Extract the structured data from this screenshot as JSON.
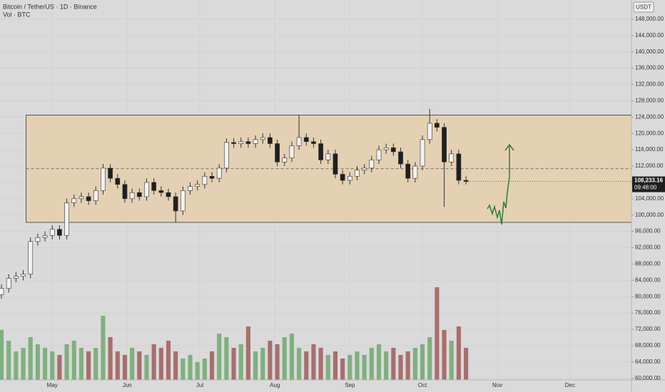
{
  "chart_data": {
    "type": "candlestick",
    "title": "Bitcoin / TetherUS · 1D · Binance",
    "subtitle": "Vol · BTC",
    "currency": "USDT",
    "price_label": "108,233.16",
    "countdown": "09:48:00",
    "open": [
      80500,
      82000,
      84500,
      85000,
      85500,
      93500,
      94500,
      95000,
      96500,
      95000,
      103000,
      104000,
      104500,
      103500,
      106000,
      111500,
      109000,
      107500,
      104000,
      105500,
      104500,
      108000,
      106000,
      105500,
      104500,
      101000,
      106000,
      107000,
      107500,
      109500,
      109000,
      111500,
      117800,
      117500,
      118000,
      117500,
      118500,
      119000,
      117500,
      113000,
      114000,
      117000,
      119000,
      118000,
      117500,
      113500,
      115000,
      110000,
      108500,
      109500,
      111000,
      111500,
      113500,
      116000,
      116500,
      115500,
      112500,
      109000,
      112000,
      118500,
      122500,
      121500,
      113000,
      115000,
      108500
    ],
    "high": [
      83000,
      85500,
      86000,
      86500,
      94500,
      95500,
      96000,
      97500,
      97500,
      104000,
      105000,
      105500,
      105500,
      107000,
      112500,
      112500,
      110000,
      108500,
      106500,
      106500,
      109000,
      109000,
      107000,
      106500,
      105500,
      107000,
      108000,
      108500,
      110500,
      110500,
      112500,
      118800,
      118800,
      119000,
      119000,
      119500,
      120000,
      120000,
      118500,
      115000,
      118000,
      124500,
      120000,
      119000,
      118500,
      116000,
      116000,
      111000,
      110500,
      112000,
      112500,
      114500,
      117000,
      117500,
      117500,
      116500,
      113500,
      113000,
      119500,
      126000,
      123500,
      122500,
      116000,
      116000,
      109500
    ],
    "low": [
      79500,
      81000,
      83500,
      84000,
      84500,
      92500,
      93500,
      94000,
      94000,
      94000,
      102000,
      103000,
      102500,
      102500,
      105000,
      108000,
      106500,
      103000,
      103000,
      103500,
      103500,
      105000,
      104500,
      103500,
      98200,
      100000,
      105000,
      106000,
      106500,
      108000,
      108000,
      110500,
      116500,
      116500,
      116500,
      116500,
      117500,
      116500,
      112000,
      112000,
      113000,
      116000,
      117000,
      116500,
      112500,
      112500,
      109000,
      107500,
      107500,
      108500,
      110000,
      110500,
      112500,
      115000,
      114500,
      111500,
      108000,
      108000,
      111000,
      117500,
      120500,
      102000,
      112000,
      107500,
      107500
    ],
    "close": [
      82000,
      84500,
      85000,
      85500,
      93500,
      94500,
      95000,
      96500,
      95000,
      103000,
      104000,
      104500,
      103500,
      106000,
      111500,
      109000,
      107500,
      104000,
      105500,
      104500,
      108000,
      106000,
      105500,
      104500,
      101000,
      106000,
      107000,
      107500,
      109500,
      109000,
      111500,
      117800,
      117500,
      118000,
      117500,
      118500,
      119000,
      117500,
      113000,
      114000,
      117000,
      119000,
      118000,
      117500,
      113500,
      115000,
      110000,
      108500,
      109500,
      111000,
      111500,
      113500,
      116000,
      116500,
      115500,
      112500,
      109000,
      112000,
      118500,
      122500,
      121500,
      113000,
      115000,
      108500,
      108233.16
    ],
    "volume": [
      70,
      55,
      40,
      45,
      60,
      50,
      45,
      40,
      35,
      50,
      55,
      45,
      40,
      45,
      90,
      60,
      40,
      35,
      45,
      40,
      35,
      50,
      45,
      55,
      40,
      30,
      35,
      25,
      30,
      40,
      65,
      60,
      45,
      50,
      75,
      40,
      45,
      55,
      50,
      60,
      65,
      45,
      40,
      50,
      45,
      35,
      40,
      30,
      35,
      40,
      35,
      45,
      50,
      40,
      45,
      35,
      40,
      45,
      50,
      60,
      130,
      70,
      55,
      75,
      45
    ],
    "vlim": [
      0,
      150
    ],
    "zone": {
      "top": 124500,
      "bottom": 98200,
      "mid": 111350
    },
    "xlim": [
      -0.2,
      86.8
    ],
    "xticks": [
      {
        "value": 7,
        "label": "May"
      },
      {
        "value": 17.33,
        "label": "Jun"
      },
      {
        "value": 27.33,
        "label": "Jul"
      },
      {
        "value": 37.67,
        "label": "Aug"
      },
      {
        "value": 48,
        "label": "Sep"
      },
      {
        "value": 58,
        "label": "Oct"
      },
      {
        "value": 68.33,
        "label": "Nov"
      },
      {
        "value": 78.33,
        "label": "Dec"
      }
    ],
    "ylim": [
      59600,
      152700
    ],
    "yticks": [
      {
        "value": 60000,
        "label": "60,000.00"
      },
      {
        "value": 64000,
        "label": "64,000.00"
      },
      {
        "value": 68000,
        "label": "68,000.00"
      },
      {
        "value": 72000,
        "label": "72,000.00"
      },
      {
        "value": 76000,
        "label": "76,000.00"
      },
      {
        "value": 80000,
        "label": "80,000.00"
      },
      {
        "value": 84000,
        "label": "84,000.00"
      },
      {
        "value": 88000,
        "label": "88,000.00"
      },
      {
        "value": 92000,
        "label": "92,000.00"
      },
      {
        "value": 96000,
        "label": "96,000.00"
      },
      {
        "value": 100000,
        "label": "100,000.00"
      },
      {
        "value": 104000,
        "label": "104,000.00"
      },
      {
        "value": 108000,
        "label": "108,000.00"
      },
      {
        "value": 112000,
        "label": "112,000.00"
      },
      {
        "value": 116000,
        "label": "116,000.00"
      },
      {
        "value": 120000,
        "label": "120,000.00"
      },
      {
        "value": 124000,
        "label": "124,000.00"
      },
      {
        "value": 128000,
        "label": "128,000.00"
      },
      {
        "value": 132000,
        "label": "132,000.00"
      },
      {
        "value": 136000,
        "label": "136,000.00"
      },
      {
        "value": 140000,
        "label": "140,000.00"
      },
      {
        "value": 144000,
        "label": "144,000.00"
      },
      {
        "value": 148000,
        "label": "148,000.00"
      }
    ],
    "up_color": "#f2f2f2",
    "down_color": "#1f1f1f",
    "wick_color": "#333333",
    "volume_up_color": "#6fa86f",
    "volume_down_color": "#a05a5a",
    "zone_color": "#e5cfab"
  }
}
